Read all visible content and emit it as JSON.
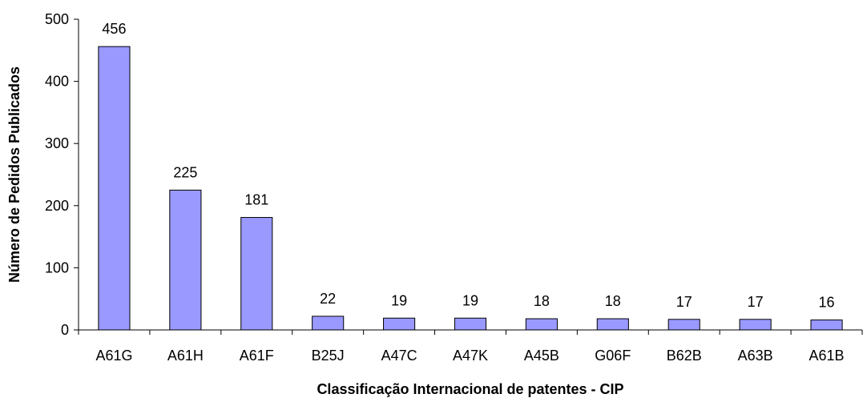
{
  "chart_data": {
    "type": "bar",
    "categories": [
      "A61G",
      "A61H",
      "A61F",
      "B25J",
      "A47C",
      "A47K",
      "A45B",
      "G06F",
      "B62B",
      "A63B",
      "A61B"
    ],
    "values": [
      456,
      225,
      181,
      22,
      19,
      19,
      18,
      18,
      17,
      17,
      16
    ],
    "data_labels": [
      "456",
      "225",
      "181",
      "22",
      "19",
      "19",
      "18",
      "18",
      "17",
      "17",
      "16"
    ],
    "xlabel": "Classificação Internacional de patentes - CIP",
    "ylabel": "Número de Pedidos Publicados",
    "ylim": [
      0,
      500
    ],
    "yticks": [
      0,
      100,
      200,
      300,
      400,
      500
    ],
    "ytick_labels": [
      "0",
      "100",
      "200",
      "300",
      "400",
      "500"
    ],
    "grid": false,
    "legend": "none",
    "colors": {
      "bar_fill": "#9999ff",
      "bar_stroke": "#000000",
      "axis": "#000000"
    }
  }
}
